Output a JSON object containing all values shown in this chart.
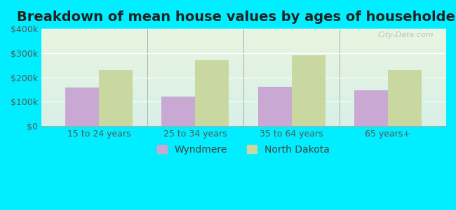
{
  "title": "Breakdown of mean house values by ages of householders",
  "categories": [
    "15 to 24 years",
    "25 to 34 years",
    "35 to 64 years",
    "65 years+"
  ],
  "wyndmere": [
    160000,
    120000,
    162000,
    148000
  ],
  "north_dakota": [
    232000,
    270000,
    290000,
    232000
  ],
  "wyndmere_color": "#c9a8d4",
  "north_dakota_color": "#c8d8a0",
  "ylim": [
    0,
    400000
  ],
  "yticks": [
    0,
    100000,
    200000,
    300000,
    400000
  ],
  "ytick_labels": [
    "$0",
    "$100k",
    "$200k",
    "$300k",
    "$400k"
  ],
  "bar_width": 0.35,
  "background_color": "#00eeff",
  "plot_bg_gradient_top": "#f0f8e8",
  "plot_bg_gradient_bottom": "#e8f8f0",
  "legend_wyndmere": "Wyndmere",
  "legend_nd": "North Dakota",
  "watermark": "City-Data.com",
  "title_fontsize": 14,
  "axis_label_fontsize": 9,
  "legend_fontsize": 10
}
